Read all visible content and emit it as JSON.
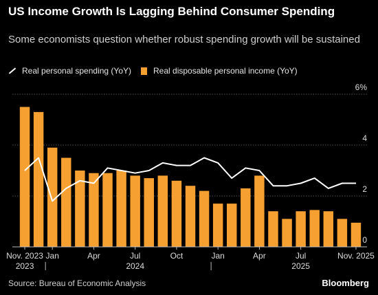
{
  "header": {
    "title": "US Income Growth Is Lagging Behind Consumer Spending",
    "subtitle": "Some economists question whether robust spending growth will be sustained"
  },
  "legend": {
    "line_label": "Real personal spending (YoY)",
    "bar_label": "Real disposable personal income (YoY)"
  },
  "footer": {
    "source": "Source: Bureau of Economic Analysis",
    "brand": "Bloomberg"
  },
  "colors": {
    "background": "#000000",
    "bar": "#f5a030",
    "line": "#ffffff",
    "grid": "#555555"
  },
  "chart_data": {
    "type": "bar",
    "x": [
      "2023-11",
      "2023-12",
      "2024-01",
      "2024-02",
      "2024-03",
      "2024-04",
      "2024-05",
      "2024-06",
      "2024-07",
      "2024-08",
      "2024-09",
      "2024-10",
      "2024-11",
      "2024-12",
      "2025-01",
      "2025-02",
      "2025-03",
      "2025-04",
      "2025-05",
      "2025-06",
      "2025-07",
      "2025-08",
      "2025-09",
      "2025-10",
      "2025-11"
    ],
    "series": [
      {
        "name": "Real disposable personal income (YoY)",
        "type": "bar",
        "values": [
          5.5,
          5.3,
          3.9,
          3.5,
          3.0,
          2.9,
          2.9,
          3.0,
          2.8,
          2.7,
          2.8,
          2.6,
          2.4,
          2.2,
          1.7,
          1.7,
          2.3,
          2.8,
          1.4,
          1.1,
          1.4,
          1.45,
          1.4,
          1.1,
          0.95
        ]
      },
      {
        "name": "Real personal spending (YoY)",
        "type": "line",
        "values": [
          3.0,
          3.5,
          1.8,
          2.3,
          2.6,
          2.5,
          3.1,
          3.0,
          2.9,
          3.0,
          3.3,
          3.2,
          3.2,
          3.5,
          3.3,
          2.7,
          3.1,
          3.0,
          2.4,
          2.4,
          2.5,
          2.7,
          2.3,
          2.5,
          2.5
        ]
      }
    ],
    "ylim": [
      0,
      6
    ],
    "y_ticks": [
      "0",
      "2",
      "4",
      "6%"
    ],
    "y_tick_values": [
      0,
      2,
      4,
      6
    ],
    "x_tick_labels": [
      "Nov. 2023",
      "Jan",
      "Apr",
      "Jul",
      "Oct",
      "Jan",
      "Apr",
      "Jul",
      "Nov. 2025"
    ],
    "x_tick_index": [
      0,
      2,
      5,
      8,
      11,
      14,
      17,
      20,
      24
    ],
    "year_labels": [
      "2023",
      "2024",
      "2025"
    ],
    "year_label_index": [
      0,
      8,
      20
    ],
    "year_divider_after": [
      1,
      13
    ],
    "grid": true,
    "legend_position": "top-left"
  }
}
